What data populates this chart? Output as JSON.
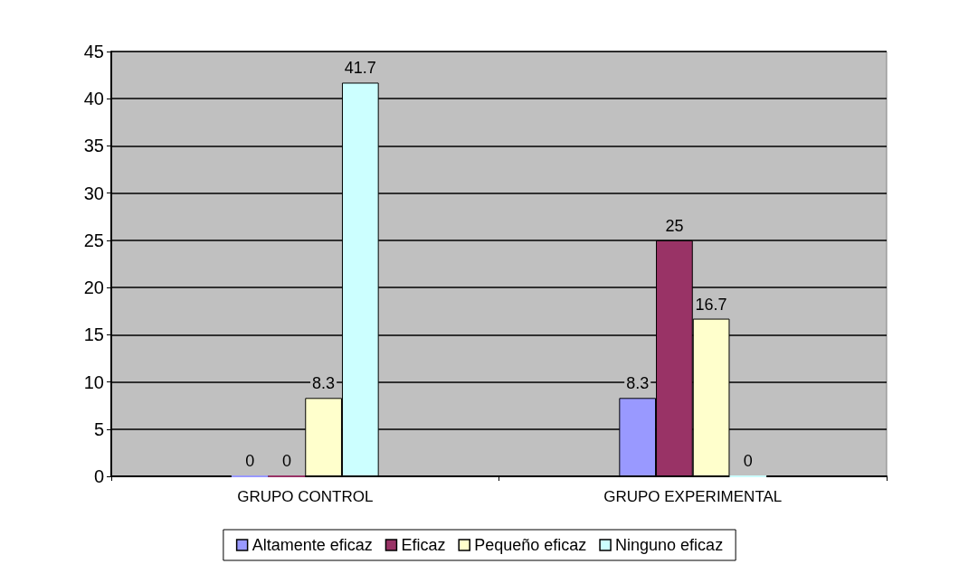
{
  "chart_data": {
    "type": "bar",
    "categories": [
      "GRUPO CONTROL",
      "GRUPO EXPERIMENTAL"
    ],
    "series": [
      {
        "name": "Altamente eficaz",
        "color": "#9999ff",
        "values": [
          0,
          8.3
        ]
      },
      {
        "name": "Eficaz",
        "color": "#993366",
        "values": [
          0,
          25
        ]
      },
      {
        "name": "Pequeño eficaz",
        "color": "#ffffcc",
        "values": [
          8.3,
          16.7
        ]
      },
      {
        "name": "Ninguno eficaz",
        "color": "#ccffff",
        "values": [
          41.7,
          0
        ]
      }
    ],
    "ylim": [
      0,
      45
    ],
    "yticks": [
      0,
      5,
      10,
      15,
      20,
      25,
      30,
      35,
      40,
      45
    ],
    "grid": "y",
    "legend": "bottom",
    "data_labels": true
  }
}
